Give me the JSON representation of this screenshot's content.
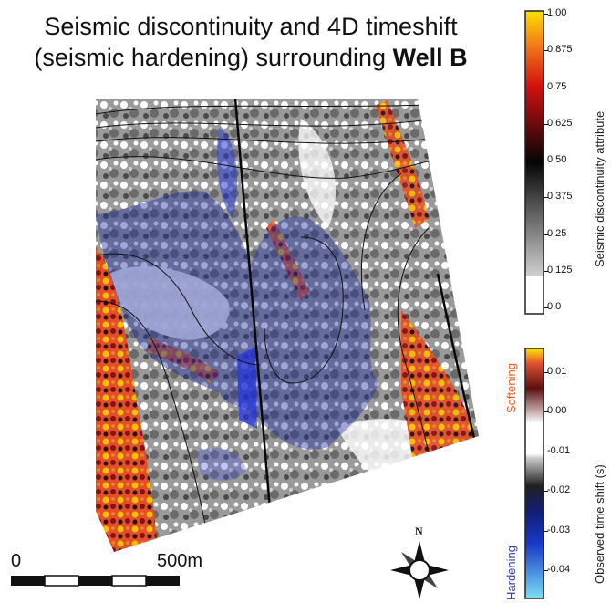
{
  "title": {
    "line1": "Seismic discontinuity and 4D timeshift",
    "line2_prefix": "(seismic hardening) surrounding ",
    "line2_bold": "Well B"
  },
  "colorbar_discontinuity": {
    "label": "Seismic discontinuity attribute",
    "ticks": [
      "1.00",
      "0.875",
      "0.75",
      "0.625",
      "0.50",
      "0.375",
      "0.25",
      "0.125",
      "0.0"
    ]
  },
  "colorbar_timeshift": {
    "label": "Observed time shift (s)",
    "ticks": [
      "0.01",
      "0.00",
      "-0.01",
      "-0.02",
      "-0.03",
      "-0.04"
    ],
    "top_word": "Softening",
    "bottom_word": "Hardening",
    "top_color": "#e0622a",
    "bottom_color": "#3a3ea0"
  },
  "scale_bar": {
    "start_label": "0",
    "end_label": "500m"
  },
  "compass": {
    "north_label": "N"
  }
}
